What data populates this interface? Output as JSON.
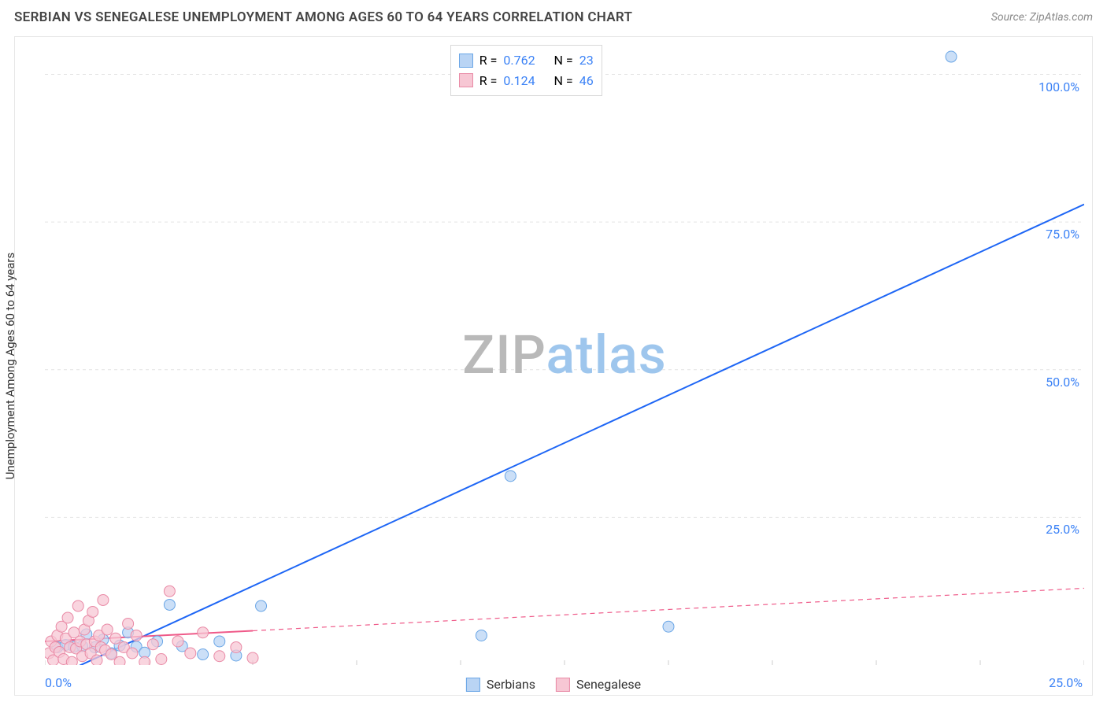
{
  "title": "SERBIAN VS SENEGALESE UNEMPLOYMENT AMONG AGES 60 TO 64 YEARS CORRELATION CHART",
  "source": "Source: ZipAtlas.com",
  "ylabel": "Unemployment Among Ages 60 to 64 years",
  "watermark_a": "ZIP",
  "watermark_b": "atlas",
  "chart": {
    "type": "scatter",
    "background_color": "#ffffff",
    "grid_color": "#e4e4e4",
    "grid_dash": "4 4",
    "border_color": "#e7e7e7",
    "xlim": [
      0,
      25
    ],
    "ylim": [
      0,
      105
    ],
    "xtick_positions": [
      0,
      2.5,
      5,
      7.5,
      10,
      12.5,
      15,
      17.5,
      20,
      22.5,
      25
    ],
    "xtick_labels": {
      "0": "0.0%",
      "25": "25.0%"
    },
    "ytick_positions": [
      0,
      25,
      50,
      75,
      100
    ],
    "ytick_labels": [
      "25.0%",
      "50.0%",
      "75.0%",
      "100.0%"
    ],
    "marker_radius": 7,
    "marker_stroke_width": 1,
    "line_width": 2,
    "series": [
      {
        "key": "serbians",
        "label": "Serbians",
        "color_fill": "#b9d4f4",
        "color_stroke": "#6aa6e6",
        "line_color": "#1e66f5",
        "line_dash": "none",
        "R": "0.762",
        "N": "23",
        "trend": {
          "x1": 0.4,
          "y1": -1.5,
          "x2": 25,
          "y2": 78
        },
        "points": [
          {
            "x": 0.3,
            "y": 3.0
          },
          {
            "x": 0.5,
            "y": 3.4
          },
          {
            "x": 0.7,
            "y": 3.1
          },
          {
            "x": 0.9,
            "y": 3.2
          },
          {
            "x": 1.0,
            "y": 5.2
          },
          {
            "x": 1.2,
            "y": 3.0
          },
          {
            "x": 1.4,
            "y": 4.3
          },
          {
            "x": 1.6,
            "y": 2.0
          },
          {
            "x": 1.8,
            "y": 3.3
          },
          {
            "x": 2.0,
            "y": 5.5
          },
          {
            "x": 2.2,
            "y": 3.1
          },
          {
            "x": 2.4,
            "y": 2.1
          },
          {
            "x": 2.7,
            "y": 4.0
          },
          {
            "x": 3.0,
            "y": 10.2
          },
          {
            "x": 3.3,
            "y": 3.2
          },
          {
            "x": 3.8,
            "y": 1.8
          },
          {
            "x": 4.2,
            "y": 4.0
          },
          {
            "x": 4.6,
            "y": 1.6
          },
          {
            "x": 5.2,
            "y": 10.0
          },
          {
            "x": 10.5,
            "y": 5.0
          },
          {
            "x": 11.2,
            "y": 32.0
          },
          {
            "x": 15.0,
            "y": 6.5
          },
          {
            "x": 21.8,
            "y": 103.0
          }
        ]
      },
      {
        "key": "senegalese",
        "label": "Senegalese",
        "color_fill": "#f7c7d4",
        "color_stroke": "#e98aa6",
        "line_color": "#ef5a89",
        "line_dash": "6 5",
        "line_solid_until_x": 5.0,
        "R": "0.124",
        "N": "46",
        "trend": {
          "x1": 0,
          "y1": 4.0,
          "x2": 25,
          "y2": 13.0
        },
        "points": [
          {
            "x": 0.1,
            "y": 2.0
          },
          {
            "x": 0.15,
            "y": 4.0
          },
          {
            "x": 0.2,
            "y": 0.8
          },
          {
            "x": 0.25,
            "y": 3.0
          },
          {
            "x": 0.3,
            "y": 5.0
          },
          {
            "x": 0.35,
            "y": 2.2
          },
          {
            "x": 0.4,
            "y": 6.5
          },
          {
            "x": 0.45,
            "y": 1.0
          },
          {
            "x": 0.5,
            "y": 4.5
          },
          {
            "x": 0.55,
            "y": 8.0
          },
          {
            "x": 0.6,
            "y": 3.0
          },
          {
            "x": 0.65,
            "y": 0.5
          },
          {
            "x": 0.7,
            "y": 5.5
          },
          {
            "x": 0.75,
            "y": 2.8
          },
          {
            "x": 0.8,
            "y": 10.0
          },
          {
            "x": 0.85,
            "y": 4.0
          },
          {
            "x": 0.9,
            "y": 1.5
          },
          {
            "x": 0.95,
            "y": 6.0
          },
          {
            "x": 1.0,
            "y": 3.5
          },
          {
            "x": 1.05,
            "y": 7.5
          },
          {
            "x": 1.1,
            "y": 2.0
          },
          {
            "x": 1.15,
            "y": 9.0
          },
          {
            "x": 1.2,
            "y": 4.0
          },
          {
            "x": 1.25,
            "y": 0.8
          },
          {
            "x": 1.3,
            "y": 5.0
          },
          {
            "x": 1.35,
            "y": 3.0
          },
          {
            "x": 1.4,
            "y": 11.0
          },
          {
            "x": 1.45,
            "y": 2.5
          },
          {
            "x": 1.5,
            "y": 6.0
          },
          {
            "x": 1.6,
            "y": 1.8
          },
          {
            "x": 1.7,
            "y": 4.5
          },
          {
            "x": 1.8,
            "y": 0.5
          },
          {
            "x": 1.9,
            "y": 3.0
          },
          {
            "x": 2.0,
            "y": 7.0
          },
          {
            "x": 2.1,
            "y": 2.0
          },
          {
            "x": 2.2,
            "y": 5.0
          },
          {
            "x": 2.4,
            "y": 0.5
          },
          {
            "x": 2.6,
            "y": 3.5
          },
          {
            "x": 2.8,
            "y": 1.0
          },
          {
            "x": 3.0,
            "y": 12.5
          },
          {
            "x": 3.2,
            "y": 4.0
          },
          {
            "x": 3.5,
            "y": 2.0
          },
          {
            "x": 3.8,
            "y": 5.5
          },
          {
            "x": 4.2,
            "y": 1.5
          },
          {
            "x": 4.6,
            "y": 3.0
          },
          {
            "x": 5.0,
            "y": 1.2
          }
        ]
      }
    ]
  },
  "legend_top": {
    "R_label": "R =",
    "N_label": "N ="
  },
  "legend_bottom_labels": [
    "Serbians",
    "Senegalese"
  ]
}
